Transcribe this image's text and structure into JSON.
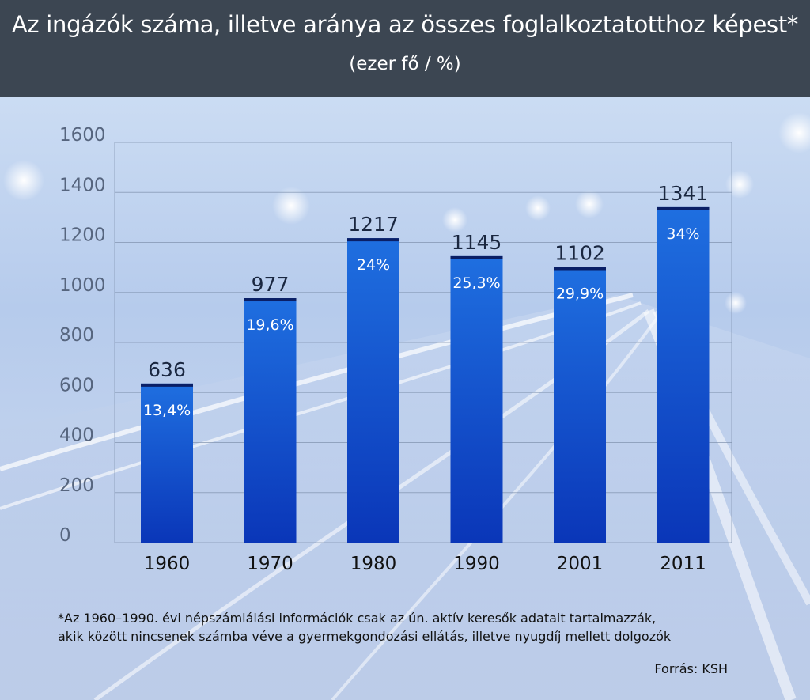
{
  "header": {
    "title": "Az ingázók száma, illetve aránya az összes foglalkoztatotthoz képest*",
    "subtitle": "(ezer fő / %)"
  },
  "chart_data": {
    "type": "bar",
    "categories": [
      "1960",
      "1970",
      "1980",
      "1990",
      "2001",
      "2011"
    ],
    "values": [
      636,
      977,
      1217,
      1145,
      1102,
      1341
    ],
    "value_labels": [
      "636",
      "977",
      "1217",
      "1145",
      "1102",
      "1341"
    ],
    "percent_labels": [
      "13,4%",
      "19,6%",
      "24%",
      "25,3%",
      "29,9%",
      "34%"
    ],
    "ylim": [
      0,
      1600
    ],
    "yticks": [
      "0",
      "200",
      "400",
      "600",
      "800",
      "1000",
      "1200",
      "1400",
      "1600"
    ],
    "grid": true,
    "colors": {
      "bar_top": "#1f6fe0",
      "bar_bottom": "#0a36b8",
      "cap": "#0a1f66"
    }
  },
  "footnote": {
    "line1": "*Az 1960–1990. évi népszámlálási információk csak az ún. aktív keresők adatait tartalmazzák,",
    "line2": "akik között nincsenek számba véve a gyermekgondozási ellátás, illetve nyugdíj mellett dolgozók"
  },
  "source": "Forrás: KSH"
}
